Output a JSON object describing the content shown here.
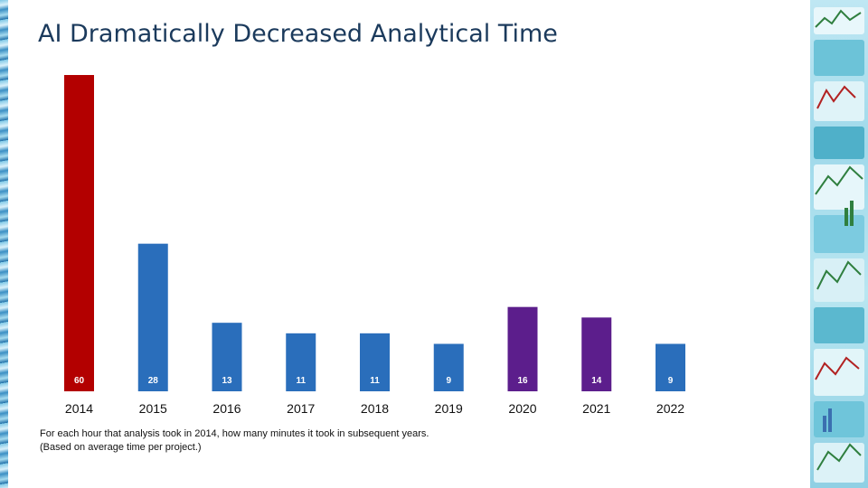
{
  "slide": {
    "title": "AI Dramatically Decreased Analytical Time",
    "footnote_1": "For each hour that analysis took in 2014, how many minutes it took in subsequent years.",
    "footnote_2": "(Based on average time per project.)"
  },
  "chart_data": {
    "type": "bar",
    "categories": [
      "2014",
      "2015",
      "2016",
      "2017",
      "2018",
      "2019",
      "2020",
      "2021",
      "2022"
    ],
    "values": [
      60,
      28,
      13,
      11,
      11,
      9,
      16,
      14,
      9
    ],
    "bar_colors": [
      "#b30000",
      "#2a6ebb",
      "#2a6ebb",
      "#2a6ebb",
      "#2a6ebb",
      "#2a6ebb",
      "#5c1e8c",
      "#5c1e8c",
      "#2a6ebb"
    ],
    "data_labels": [
      "60",
      "28",
      "13",
      "11",
      "11",
      "9",
      "16",
      "14",
      "9"
    ],
    "ylim": [
      0,
      60
    ],
    "grid": false,
    "legend": "none",
    "xlabel": "",
    "ylabel": ""
  },
  "decor": {
    "right_panel_icon": "chart-collage-illustration",
    "left_strip_icon": "water-texture-strip"
  }
}
